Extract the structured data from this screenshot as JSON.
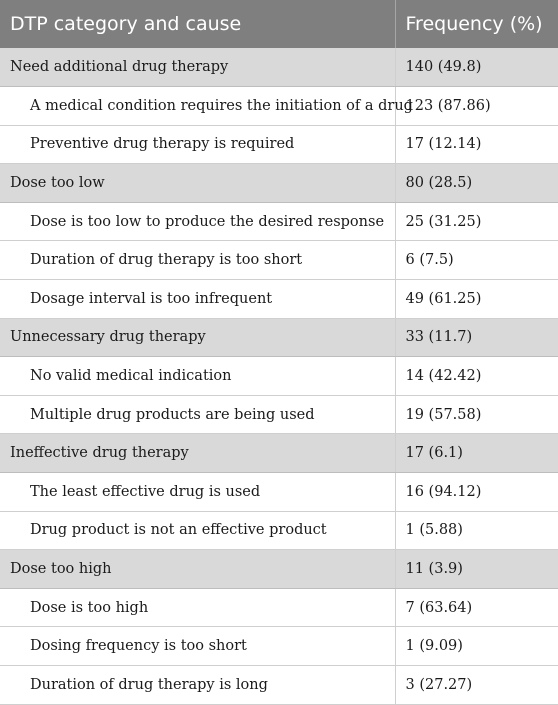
{
  "table": {
    "headers": [
      "DTP category and cause",
      "Frequency (%)"
    ],
    "rows": [
      {
        "kind": "category",
        "label": "Need additional drug therapy",
        "value": "140 (49.8)"
      },
      {
        "kind": "cause",
        "label": "A medical condition requires the initiation of a drug",
        "value": "123 (87.86)"
      },
      {
        "kind": "cause",
        "label": "Preventive drug therapy is required",
        "value": "17 (12.14)"
      },
      {
        "kind": "category",
        "label": "Dose too low",
        "value": "80 (28.5)"
      },
      {
        "kind": "cause",
        "label": "Dose is too low to produce the desired response",
        "value": "25 (31.25)"
      },
      {
        "kind": "cause",
        "label": "Duration of drug therapy is too short",
        "value": "6 (7.5)"
      },
      {
        "kind": "cause",
        "label": "Dosage interval is too infrequent",
        "value": "49 (61.25)"
      },
      {
        "kind": "category",
        "label": "Unnecessary drug therapy",
        "value": "33 (11.7)"
      },
      {
        "kind": "cause",
        "label": "No valid medical indication",
        "value": "14 (42.42)"
      },
      {
        "kind": "cause",
        "label": "Multiple drug products are being used",
        "value": "19 (57.58)"
      },
      {
        "kind": "category",
        "label": "Ineffective drug therapy",
        "value": "17 (6.1)"
      },
      {
        "kind": "cause",
        "label": "The least effective drug is used",
        "value": "16 (94.12)"
      },
      {
        "kind": "cause",
        "label": "Drug product is not an effective product",
        "value": "1 (5.88)"
      },
      {
        "kind": "category",
        "label": "Dose too high",
        "value": "11 (3.9)"
      },
      {
        "kind": "cause",
        "label": "Dose is too high",
        "value": "7 (63.64)"
      },
      {
        "kind": "cause",
        "label": "Dosing frequency is too short",
        "value": "1 (9.09)"
      },
      {
        "kind": "cause",
        "label": "Duration of drug therapy is long",
        "value": "3 (27.27)"
      }
    ]
  }
}
